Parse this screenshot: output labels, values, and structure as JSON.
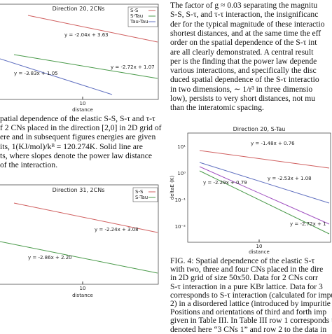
{
  "left_figure_1": {
    "title": "Direction 20, 2CNs",
    "legend": [
      "S-S",
      "S-Tau",
      "Tau-Tau"
    ],
    "fits": [
      "y = -2.04x + 3.63",
      "y = -2.72x + 1.07",
      "y = -3.83x + 1.05"
    ],
    "x_tick": "10",
    "x_label": "distance"
  },
  "left_caption": [
    "patial dependence of the elastic S-S, S-τ and τ-τ",
    "f 2 CNs placed in the direction [2,0] in 2D grid of",
    "ere and in subsequent figures energies are given",
    "its, 1(KJ/mol)/kᴮ = 120.274K.  Solid line are",
    "ts, where slopes denote the power law distance",
    "of the interaction."
  ],
  "left_figure_2": {
    "title": "Direction 31, 2CNs",
    "legend": [
      "S-S",
      "S-Tau"
    ],
    "fits": [
      "y = -2.24x + 3.08",
      "y = -2.86x + 2.20"
    ],
    "x_tick": "10",
    "x_label": "distance"
  },
  "right_text": [
    "The factor of g ≈ 0.03 separating the magnitu",
    "S-S, S-τ, and τ-τ interaction, the insignificanc",
    "der for the typical magnitude of these interactio",
    "shortest distances, and at the same time the eff",
    "order on the spatial dependence of the S-τ int",
    "are all clearly demonstrated. A central result",
    "per is the finding that the power law depende",
    "various interactions, and specifically the disc",
    "duced spatial dependence of the S-τ interactio",
    "in two dimensions, ∼ 1/r³ in three dimensio",
    "low), persists to very short distances, not mu",
    "than the interatomic spacing."
  ],
  "right_figure": {
    "title": "Direction 20, S-Tau",
    "y_label": "deltaE (K)",
    "y_ticks": [
      "10¹",
      "10⁰",
      "10⁻¹",
      "10⁻²"
    ],
    "fits": [
      "y = -1.48x + 0.76",
      "y = -2.53x + 1.08",
      "y = -2.29x + 0.79",
      "y = -2.72x + 1"
    ],
    "x_tick": "10",
    "x_label": "distance"
  },
  "right_caption": [
    "FIG. 4:   Spatial dependence of the elastic S-τ",
    "with two, three and four CNs placed in the dire",
    "in 2D grid of size 50x50. Data for 2 CNs corr",
    "S-τ interaction in a pure KBr lattice. Data for 3",
    "corresponds to S-τ interaction (calculated for impu",
    "2) in a disordered lattice (introduced by impuritie",
    "Positions and orientations of third and forth imp",
    "given in Table III. In Table III row 1 corresponds t",
    "denoted here “3 CNs 1” and row 2 to the data in"
  ]
}
